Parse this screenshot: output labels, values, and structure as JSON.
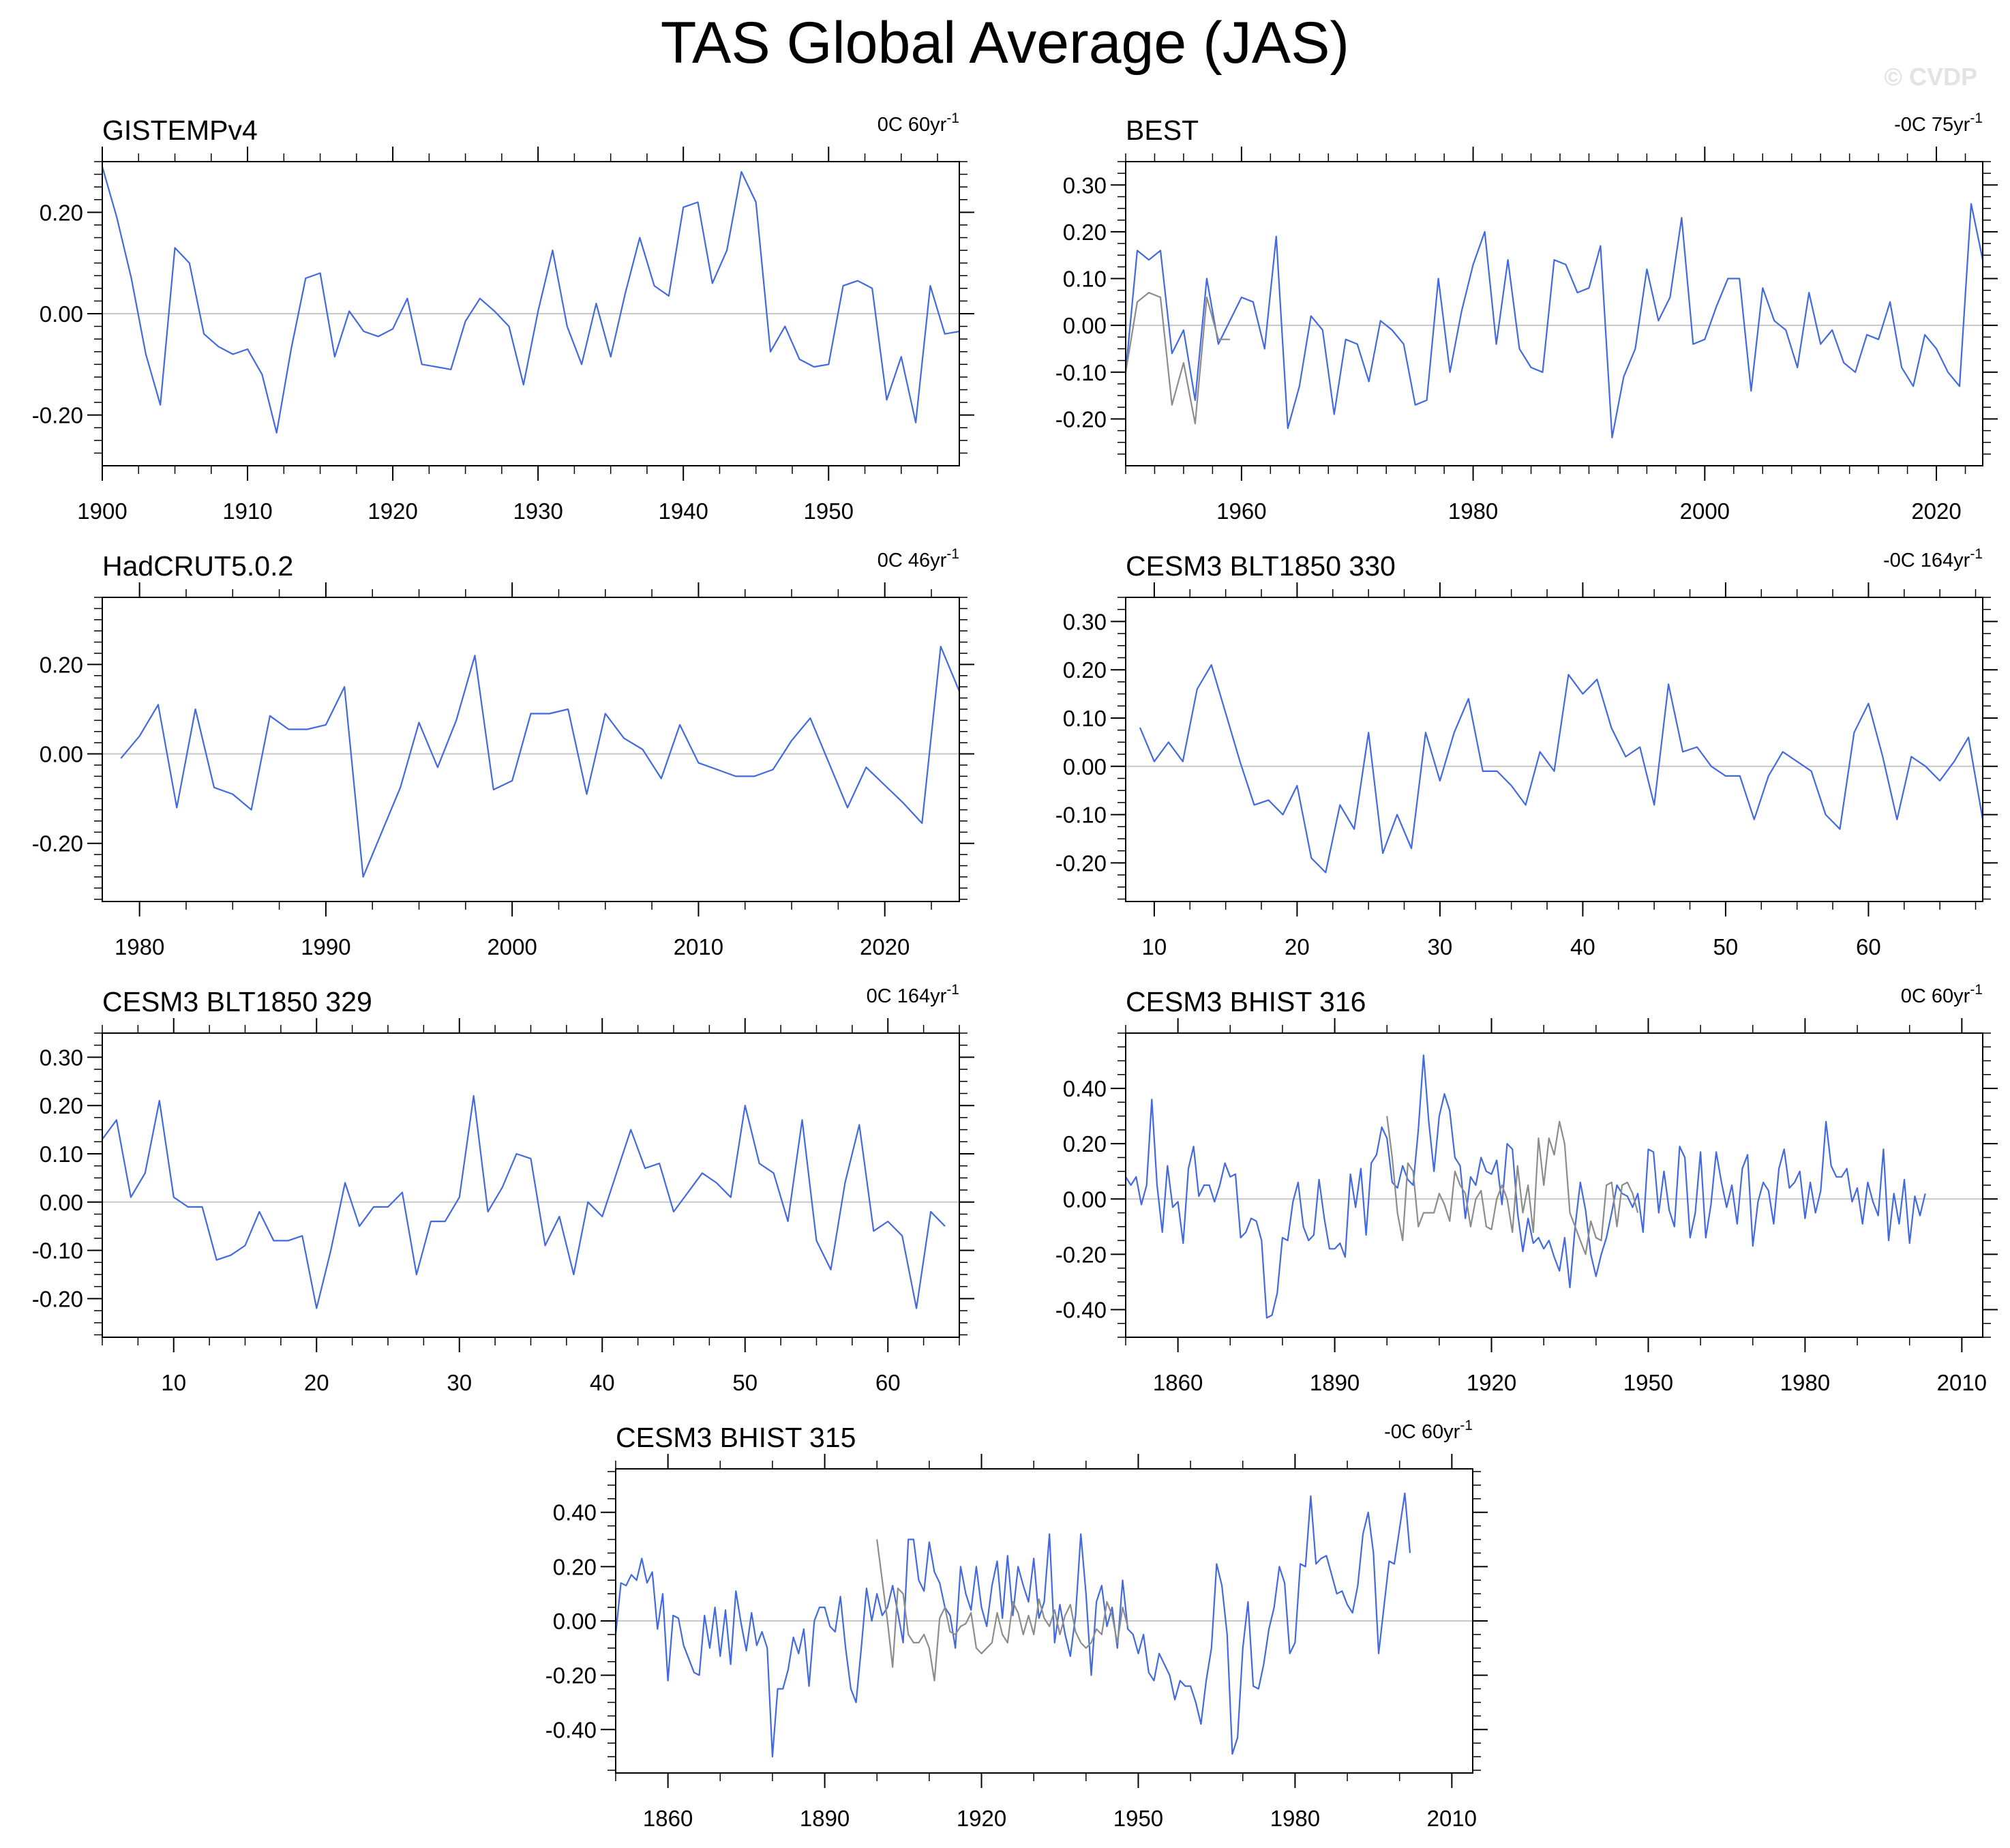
{
  "title": "TAS Global Average (JAS)",
  "watermark": "© CVDP",
  "colors": {
    "series": "#4169e1",
    "overlay": "#8c8c8c",
    "zero_line": "#c8c8c8",
    "axis": "#000000"
  },
  "chart_data": [
    {
      "type": "line",
      "title": "GISTEMPv4",
      "trend_label": "0C 60yr",
      "trend_sup": "-1",
      "xlim": [
        1900,
        1959
      ],
      "ylim": [
        -0.3,
        0.3
      ],
      "xticks": [
        1900,
        1910,
        1920,
        1930,
        1940,
        1950
      ],
      "xtick_labels": [
        "1900",
        "1910",
        "1920",
        "1930",
        "1940",
        "1950"
      ],
      "yticks": [
        -0.2,
        0.0,
        0.2
      ],
      "ytick_labels": [
        "-0.20",
        "0.00",
        "0.20"
      ],
      "series": [
        {
          "x_start": 1900,
          "values": [
            0.29,
            0.19,
            0.07,
            -0.08,
            -0.18,
            0.13,
            0.1,
            -0.04,
            -0.065,
            -0.08,
            -0.07,
            -0.12,
            -0.235,
            -0.07,
            0.07,
            0.08,
            -0.085,
            0.005,
            -0.035,
            -0.045,
            -0.03,
            0.03,
            -0.1,
            -0.105,
            -0.11,
            -0.015,
            0.03,
            0.005,
            -0.025,
            -0.14,
            0.005,
            0.125,
            -0.025,
            -0.1,
            0.02,
            -0.085,
            0.04,
            0.15,
            0.055,
            0.035,
            0.21,
            0.22,
            0.06,
            0.125,
            0.28,
            0.22,
            -0.075,
            -0.025,
            -0.09,
            -0.105,
            -0.1,
            0.055,
            0.065,
            0.05,
            -0.17,
            -0.085,
            -0.215,
            0.055,
            -0.04,
            -0.035
          ]
        }
      ]
    },
    {
      "type": "line",
      "title": "BEST",
      "trend_label": "-0C 75yr",
      "trend_sup": "-1",
      "xlim": [
        1950,
        2024
      ],
      "ylim": [
        -0.3,
        0.35
      ],
      "xticks": [
        1960,
        1980,
        2000,
        2020
      ],
      "xtick_labels": [
        "1960",
        "1980",
        "2000",
        "2020"
      ],
      "yticks": [
        -0.2,
        -0.1,
        0.0,
        0.1,
        0.2,
        0.3
      ],
      "ytick_labels": [
        "-0.20",
        "-0.10",
        "0.00",
        "0.10",
        "0.20",
        "0.30"
      ],
      "series": [
        {
          "x_start": 1950,
          "values": [
            -0.1,
            0.16,
            0.14,
            0.16,
            -0.06,
            -0.01,
            -0.16,
            0.1,
            -0.04,
            0.01,
            0.06,
            0.05,
            -0.05,
            0.19,
            -0.22,
            -0.13,
            0.02,
            -0.01,
            -0.19,
            -0.03,
            -0.04,
            -0.12,
            0.01,
            -0.01,
            -0.04,
            -0.17,
            -0.16,
            0.1,
            -0.1,
            0.03,
            0.13,
            0.2,
            -0.04,
            0.14,
            -0.05,
            -0.09,
            -0.1,
            0.14,
            0.13,
            0.07,
            0.08,
            0.17,
            -0.24,
            -0.11,
            -0.05,
            0.12,
            0.01,
            0.06,
            0.23,
            -0.04,
            -0.03,
            0.04,
            0.1,
            0.1,
            -0.14,
            0.08,
            0.01,
            -0.01,
            -0.09,
            0.07,
            -0.04,
            -0.01,
            -0.08,
            -0.1,
            -0.02,
            -0.03,
            0.05,
            -0.09,
            -0.13,
            -0.02,
            -0.05,
            -0.1,
            -0.13,
            0.26,
            0.14
          ]
        },
        {
          "x_start": 1950,
          "overlay": true,
          "values": [
            -0.1,
            0.05,
            0.07,
            0.06,
            -0.17,
            -0.08,
            -0.21,
            0.06,
            -0.03,
            -0.03
          ]
        }
      ]
    },
    {
      "type": "line",
      "title": "HadCRUT5.0.2",
      "trend_label": "0C 46yr",
      "trend_sup": "-1",
      "xlim": [
        1978,
        2024
      ],
      "ylim": [
        -0.33,
        0.35
      ],
      "xticks": [
        1980,
        1990,
        2000,
        2010,
        2020
      ],
      "xtick_labels": [
        "1980",
        "1990",
        "2000",
        "2010",
        "2020"
      ],
      "yticks": [
        -0.2,
        0.0,
        0.2
      ],
      "ytick_labels": [
        "-0.20",
        "0.00",
        "0.20"
      ],
      "series": [
        {
          "x_start": 1979,
          "values": [
            -0.01,
            0.04,
            0.11,
            -0.12,
            0.1,
            -0.075,
            -0.09,
            -0.125,
            0.085,
            0.055,
            0.055,
            0.065,
            0.15,
            -0.275,
            -0.175,
            -0.075,
            0.07,
            -0.03,
            0.075,
            0.22,
            -0.08,
            -0.06,
            0.09,
            0.09,
            0.1,
            -0.09,
            0.09,
            0.035,
            0.01,
            -0.055,
            0.065,
            -0.02,
            -0.035,
            -0.05,
            -0.05,
            -0.035,
            0.03,
            0.08,
            -0.02,
            -0.12,
            -0.03,
            -0.07,
            -0.11,
            -0.155,
            0.24,
            0.14
          ]
        }
      ]
    },
    {
      "type": "line",
      "title": "CESM3 BLT1850 330",
      "trend_label": "-0C 164yr",
      "trend_sup": "-1",
      "xlim": [
        8,
        68
      ],
      "ylim": [
        -0.28,
        0.35
      ],
      "xticks": [
        10,
        20,
        30,
        40,
        50,
        60
      ],
      "xtick_labels": [
        "10",
        "20",
        "30",
        "40",
        "50",
        "60"
      ],
      "yticks": [
        -0.2,
        -0.1,
        0.0,
        0.1,
        0.2,
        0.3
      ],
      "ytick_labels": [
        "-0.20",
        "-0.10",
        "0.00",
        "0.10",
        "0.20",
        "0.30"
      ],
      "series": [
        {
          "x_start": 9,
          "values": [
            0.08,
            0.01,
            0.05,
            0.01,
            0.16,
            0.21,
            0.11,
            0.01,
            -0.08,
            -0.07,
            -0.1,
            -0.04,
            -0.19,
            -0.22,
            -0.08,
            -0.13,
            0.07,
            -0.18,
            -0.1,
            -0.17,
            0.07,
            -0.03,
            0.07,
            0.14,
            -0.01,
            -0.01,
            -0.04,
            -0.08,
            0.03,
            -0.01,
            0.19,
            0.15,
            0.18,
            0.08,
            0.02,
            0.04,
            -0.08,
            0.17,
            0.03,
            0.04,
            0.0,
            -0.02,
            -0.02,
            -0.11,
            -0.02,
            0.03,
            0.01,
            -0.01,
            -0.1,
            -0.13,
            0.07,
            0.13,
            0.02,
            -0.11,
            0.02,
            0.0,
            -0.03,
            0.01,
            0.06,
            -0.11
          ]
        }
      ]
    },
    {
      "type": "line",
      "title": "CESM3 BLT1850 329",
      "trend_label": "0C 164yr",
      "trend_sup": "-1",
      "xlim": [
        5,
        65
      ],
      "ylim": [
        -0.28,
        0.35
      ],
      "xticks": [
        10,
        20,
        30,
        40,
        50,
        60
      ],
      "xtick_labels": [
        "10",
        "20",
        "30",
        "40",
        "50",
        "60"
      ],
      "yticks": [
        -0.2,
        -0.1,
        0.0,
        0.1,
        0.2,
        0.3
      ],
      "ytick_labels": [
        "-0.20",
        "-0.10",
        "0.00",
        "0.10",
        "0.20",
        "0.30"
      ],
      "series": [
        {
          "x_start": 5,
          "values": [
            0.13,
            0.17,
            0.01,
            0.06,
            0.21,
            0.01,
            -0.01,
            -0.01,
            -0.12,
            -0.11,
            -0.09,
            -0.02,
            -0.08,
            -0.08,
            -0.07,
            -0.22,
            -0.1,
            0.04,
            -0.05,
            -0.01,
            -0.01,
            0.02,
            -0.15,
            -0.04,
            -0.04,
            0.01,
            0.22,
            -0.02,
            0.03,
            0.1,
            0.09,
            -0.09,
            -0.03,
            -0.15,
            0.0,
            -0.03,
            0.06,
            0.15,
            0.07,
            0.08,
            -0.02,
            0.02,
            0.06,
            0.04,
            0.01,
            0.2,
            0.08,
            0.06,
            -0.04,
            0.17,
            -0.08,
            -0.14,
            0.04,
            0.16,
            -0.06,
            -0.04,
            -0.07,
            -0.22,
            -0.02,
            -0.05
          ]
        }
      ]
    },
    {
      "type": "line",
      "title": "CESM3 BHIST 316",
      "trend_label": "0C 60yr",
      "trend_sup": "-1",
      "xlim": [
        1850,
        2014
      ],
      "ylim": [
        -0.5,
        0.6
      ],
      "xticks": [
        1860,
        1890,
        1920,
        1950,
        1980,
        2010
      ],
      "xtick_labels": [
        "1860",
        "1890",
        "1920",
        "1950",
        "1980",
        "2010"
      ],
      "yticks": [
        -0.4,
        -0.2,
        0.0,
        0.2,
        0.4
      ],
      "ytick_labels": [
        "-0.40",
        "-0.20",
        "0.00",
        "0.20",
        "0.40"
      ],
      "series": [
        {
          "x_start": 1850,
          "values": [
            0.08,
            0.05,
            0.08,
            -0.02,
            0.05,
            0.36,
            0.05,
            -0.12,
            0.12,
            -0.03,
            -0.01,
            -0.16,
            0.11,
            0.19,
            0.01,
            0.05,
            0.05,
            -0.01,
            0.05,
            0.13,
            0.08,
            0.09,
            -0.14,
            -0.12,
            -0.07,
            -0.08,
            -0.15,
            -0.43,
            -0.42,
            -0.34,
            -0.14,
            -0.15,
            -0.01,
            0.06,
            -0.1,
            -0.15,
            -0.13,
            0.07,
            -0.07,
            -0.18,
            -0.18,
            -0.16,
            -0.21,
            0.09,
            -0.03,
            0.11,
            -0.13,
            0.13,
            0.16,
            0.26,
            0.22,
            0.06,
            0.04,
            0.12,
            0.07,
            0.05,
            0.25,
            0.52,
            0.28,
            0.1,
            0.3,
            0.38,
            0.32,
            0.15,
            0.12,
            -0.07,
            0.08,
            0.05,
            0.15,
            0.1,
            0.09,
            0.14,
            -0.02,
            0.2,
            0.18,
            -0.05,
            -0.19,
            -0.07,
            -0.16,
            -0.14,
            -0.18,
            -0.15,
            -0.21,
            -0.26,
            -0.14,
            -0.32,
            -0.1,
            0.06,
            -0.04,
            -0.2,
            -0.28,
            -0.2,
            -0.14,
            -0.05,
            0.05,
            0.02,
            0.01,
            -0.03,
            0.02,
            -0.12,
            0.18,
            0.17,
            -0.05,
            0.1,
            -0.04,
            -0.1,
            0.19,
            0.15,
            -0.14,
            -0.05,
            0.17,
            -0.14,
            -0.02,
            0.17,
            0.06,
            -0.03,
            0.05,
            -0.09,
            0.11,
            0.16,
            -0.17,
            -0.01,
            0.06,
            0.03,
            -0.09,
            0.11,
            0.18,
            0.04,
            0.06,
            0.1,
            -0.07,
            0.06,
            -0.05,
            0.03,
            0.28,
            0.12,
            0.08,
            0.08,
            0.11,
            -0.01,
            0.04,
            -0.09,
            0.06,
            -0.01,
            -0.06,
            0.18,
            -0.15,
            0.02,
            -0.09,
            0.07,
            -0.16,
            0.01,
            -0.06,
            0.02
          ]
        },
        {
          "x_start": 1900,
          "overlay": true,
          "values": [
            0.3,
            0.15,
            -0.05,
            -0.15,
            0.13,
            0.1,
            -0.1,
            -0.05,
            -0.05,
            -0.05,
            0.02,
            -0.02,
            -0.08,
            0.1,
            0.05,
            0.02,
            -0.1,
            0.0,
            0.03,
            -0.1,
            -0.11,
            0.0,
            0.05,
            0.0,
            -0.12,
            0.12,
            -0.05,
            0.05,
            -0.12,
            0.22,
            0.05,
            0.22,
            0.16,
            0.28,
            0.2,
            -0.05,
            -0.1,
            -0.15,
            -0.2,
            -0.08,
            -0.14,
            -0.15,
            0.05,
            0.06,
            -0.1,
            0.05,
            0.06,
            0.02,
            -0.05
          ]
        }
      ]
    },
    {
      "type": "line",
      "title": "CESM3 BHIST 315",
      "trend_label": "-0C 60yr",
      "trend_sup": "-1",
      "xlim": [
        1850,
        2014
      ],
      "ylim": [
        -0.56,
        0.56
      ],
      "xticks": [
        1860,
        1890,
        1920,
        1950,
        1980,
        2010
      ],
      "xtick_labels": [
        "1860",
        "1890",
        "1920",
        "1950",
        "1980",
        "2010"
      ],
      "yticks": [
        -0.4,
        -0.2,
        0.0,
        0.2,
        0.4
      ],
      "ytick_labels": [
        "-0.40",
        "-0.20",
        "0.00",
        "0.20",
        "0.40"
      ],
      "series": [
        {
          "x_start": 1850,
          "values": [
            -0.05,
            0.14,
            0.13,
            0.17,
            0.15,
            0.23,
            0.14,
            0.18,
            -0.03,
            0.1,
            -0.22,
            0.02,
            0.01,
            -0.09,
            -0.14,
            -0.19,
            -0.2,
            0.02,
            -0.1,
            0.05,
            -0.13,
            0.04,
            -0.16,
            0.11,
            -0.01,
            -0.11,
            0.03,
            -0.09,
            -0.04,
            -0.1,
            -0.5,
            -0.25,
            -0.25,
            -0.18,
            -0.06,
            -0.12,
            -0.03,
            -0.24,
            0.0,
            0.05,
            0.05,
            -0.02,
            -0.04,
            0.09,
            -0.1,
            -0.25,
            -0.3,
            -0.1,
            0.12,
            0.0,
            0.1,
            0.02,
            0.05,
            0.13,
            0.03,
            -0.08,
            0.3,
            0.3,
            0.15,
            0.11,
            0.29,
            0.18,
            0.14,
            0.05,
            0.02,
            -0.1,
            0.2,
            0.1,
            0.04,
            0.2,
            0.05,
            -0.02,
            0.13,
            0.22,
            0.01,
            0.24,
            0.02,
            0.2,
            0.13,
            0.07,
            0.23,
            0.01,
            0.07,
            0.32,
            -0.08,
            0.06,
            -0.05,
            -0.13,
            0.02,
            0.32,
            0.1,
            -0.2,
            0.07,
            0.13,
            -0.02,
            0.05,
            -0.1,
            0.15,
            -0.03,
            -0.05,
            -0.12,
            -0.05,
            -0.19,
            -0.22,
            -0.12,
            -0.16,
            -0.2,
            -0.29,
            -0.22,
            -0.24,
            -0.24,
            -0.3,
            -0.38,
            -0.22,
            -0.1,
            0.21,
            0.13,
            -0.05,
            -0.49,
            -0.43,
            -0.1,
            0.07,
            -0.24,
            -0.25,
            -0.16,
            -0.03,
            0.05,
            0.2,
            0.14,
            -0.12,
            -0.08,
            0.21,
            0.2,
            0.46,
            0.21,
            0.23,
            0.24,
            0.17,
            0.1,
            0.11,
            0.06,
            0.03,
            0.13,
            0.32,
            0.4,
            0.25,
            -0.12,
            0.05,
            0.22,
            0.21,
            0.34,
            0.47,
            0.25
          ]
        },
        {
          "x_start": 1900,
          "overlay": true,
          "values": [
            0.3,
            0.15,
            0.0,
            -0.17,
            0.12,
            0.1,
            -0.05,
            -0.08,
            -0.08,
            -0.05,
            -0.1,
            -0.22,
            0.01,
            0.05,
            -0.04,
            -0.05,
            -0.02,
            -0.01,
            0.03,
            -0.1,
            -0.12,
            -0.1,
            -0.08,
            0.03,
            -0.05,
            -0.08,
            0.07,
            0.03,
            -0.05,
            0.02,
            -0.05,
            0.08,
            0.01,
            -0.02,
            0.04,
            -0.05,
            0.02,
            0.06,
            -0.04,
            -0.08,
            -0.1,
            -0.08,
            -0.03,
            -0.05,
            0.07,
            0.02,
            -0.08,
            0.05,
            -0.02
          ]
        }
      ]
    }
  ]
}
